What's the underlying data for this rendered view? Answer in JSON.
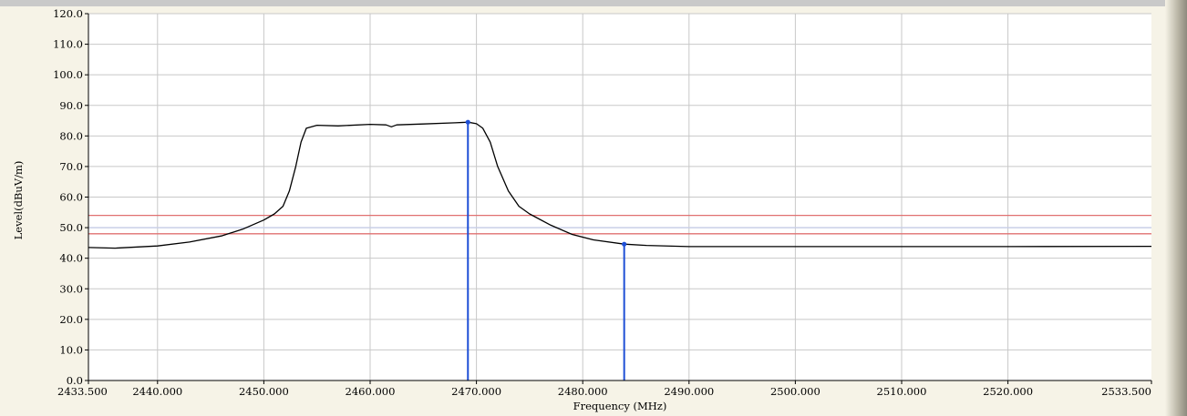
{
  "chart_data": {
    "type": "line",
    "xlabel": "Frequency (MHz)",
    "ylabel": "Level(dBuV/m)",
    "xlim": [
      2433.5,
      2533.5
    ],
    "ylim": [
      0,
      120
    ],
    "grid": true,
    "x_ticks": [
      {
        "value": 2433.5,
        "label": "2433.500"
      },
      {
        "value": 2440,
        "label": "2440.000"
      },
      {
        "value": 2450,
        "label": "2450.000"
      },
      {
        "value": 2460,
        "label": "2460.000"
      },
      {
        "value": 2470,
        "label": "2470.000"
      },
      {
        "value": 2480,
        "label": "2480.000"
      },
      {
        "value": 2490,
        "label": "2490.000"
      },
      {
        "value": 2500,
        "label": "2500.000"
      },
      {
        "value": 2510,
        "label": "2510.000"
      },
      {
        "value": 2520,
        "label": "2520.000"
      },
      {
        "value": 2533.5,
        "label": "2533.500"
      }
    ],
    "y_ticks": [
      "0.0",
      "10.0",
      "20.0",
      "30.0",
      "40.0",
      "50.0",
      "60.0",
      "70.0",
      "80.0",
      "90.0",
      "100.0",
      "110.0",
      "120.0"
    ],
    "limit_lines": [
      {
        "y": 54,
        "color": "#e07070"
      },
      {
        "y": 48,
        "color": "#e07070"
      },
      {
        "y": 50,
        "color": "#c6cde8"
      }
    ],
    "series": [
      {
        "color": "#000000",
        "x": [
          2433.5,
          2436,
          2440,
          2443,
          2446,
          2448,
          2450,
          2451,
          2451.8,
          2452.4,
          2453,
          2453.5,
          2454,
          2455,
          2457,
          2460,
          2461.5,
          2462,
          2462.5,
          2465,
          2468,
          2469.2,
          2470,
          2470.6,
          2471.3,
          2472,
          2473,
          2474,
          2475,
          2477,
          2479,
          2481,
          2483.9,
          2486,
          2490,
          2500,
          2510,
          2520,
          2533.5
        ],
        "y": [
          43.5,
          43.3,
          44.0,
          45.3,
          47.3,
          49.5,
          52.5,
          54.5,
          57.0,
          62.0,
          70.0,
          78.0,
          82.5,
          83.5,
          83.3,
          83.8,
          83.6,
          83.0,
          83.6,
          83.9,
          84.3,
          84.5,
          84.0,
          82.5,
          78.0,
          70.0,
          62.0,
          57.0,
          54.5,
          50.8,
          47.8,
          46.0,
          44.6,
          44.2,
          43.8,
          43.8,
          43.8,
          43.8,
          43.9
        ]
      }
    ],
    "markers": [
      {
        "x": 2469.2,
        "y": 84.5,
        "color": "#1f4fd6"
      },
      {
        "x": 2483.9,
        "y": 44.6,
        "color": "#1f4fd6"
      }
    ]
  }
}
